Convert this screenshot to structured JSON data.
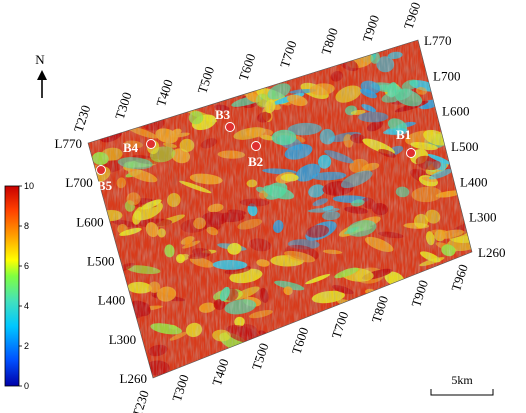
{
  "map": {
    "north_label": "N",
    "scale_bar_label": "5km",
    "colorbar": {
      "min": 0,
      "max": 10,
      "ticks": [
        "0",
        "2",
        "4",
        "6",
        "8",
        "10"
      ],
      "colors": [
        "#0000a8",
        "#0050ff",
        "#00c8ff",
        "#40e0c0",
        "#80ff40",
        "#ffff00",
        "#ffa000",
        "#ff4000",
        "#c80000"
      ]
    },
    "trace_labels_top": [
      "T230",
      "T300",
      "T400",
      "T500",
      "T600",
      "T700",
      "T800",
      "T900",
      "T960"
    ],
    "trace_labels_bottom": [
      "T230",
      "T300",
      "T400",
      "T500",
      "T600",
      "T700",
      "T800",
      "T900",
      "T960"
    ],
    "line_labels_left": [
      "L770",
      "L700",
      "L600",
      "L500",
      "L400",
      "L300",
      "L260"
    ],
    "line_labels_right": [
      "L770",
      "L700",
      "L600",
      "L500",
      "L400",
      "L300",
      "L260"
    ],
    "wells": [
      {
        "name": "B1"
      },
      {
        "name": "B2"
      },
      {
        "name": "B3"
      },
      {
        "name": "B4"
      },
      {
        "name": "B5"
      }
    ]
  }
}
